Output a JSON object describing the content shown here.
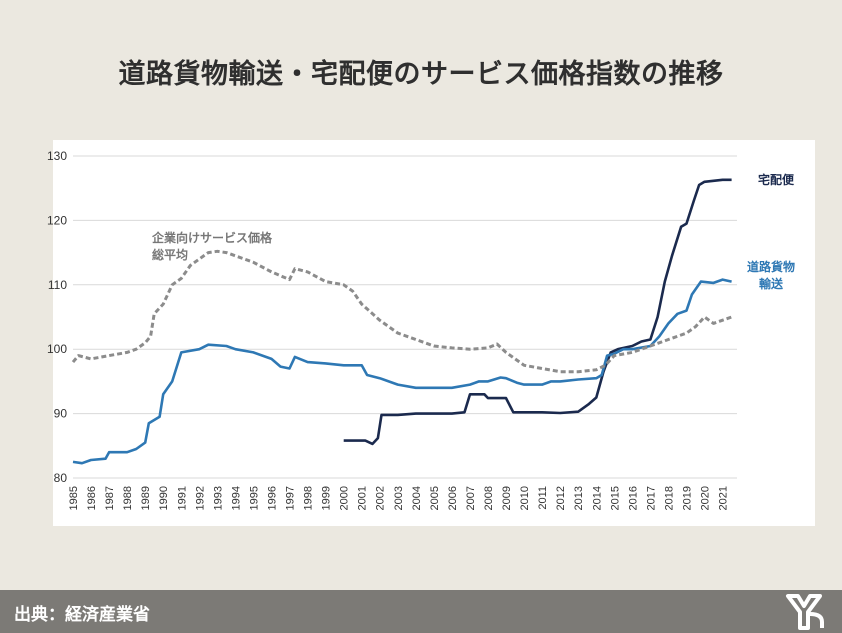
{
  "page": {
    "title": "道路貨物輸送・宅配便のサービス価格指数の推移"
  },
  "footer": {
    "source": "出典：経済産業省"
  },
  "colors": {
    "takuhaibin": "#1b2a4e",
    "doro": "#2e78b4",
    "heikin": "#8c8c8c"
  },
  "chart_data": {
    "type": "line",
    "ylim": [
      80,
      130
    ],
    "yticks": [
      80,
      90,
      100,
      110,
      120,
      130
    ],
    "xlim": [
      1985,
      2021.8
    ],
    "xticks": [
      "1985",
      "1986",
      "1987",
      "1988",
      "1989",
      "1990",
      "1991",
      "1992",
      "1993",
      "1994",
      "1995",
      "1996",
      "1997",
      "1998",
      "1999",
      "2000",
      "2001",
      "2002",
      "2003",
      "2004",
      "2005",
      "2006",
      "2007",
      "2008",
      "2009",
      "2010",
      "2011",
      "2012",
      "2013",
      "2014",
      "2015",
      "2016",
      "2017",
      "2018",
      "2019",
      "2020",
      "2021"
    ],
    "grid": true,
    "series": [
      {
        "name": "宅配便",
        "label_lines": [
          "宅配便"
        ],
        "color": "#1b2a4e",
        "style": "solid",
        "points": [
          [
            2000.0,
            85.8
          ],
          [
            2001.2,
            85.8
          ],
          [
            2001.6,
            85.3
          ],
          [
            2001.9,
            86.2
          ],
          [
            2002.1,
            89.8
          ],
          [
            2003.0,
            89.8
          ],
          [
            2004.0,
            90.0
          ],
          [
            2005.0,
            90.0
          ],
          [
            2006.0,
            90.0
          ],
          [
            2006.7,
            90.2
          ],
          [
            2007.0,
            93.0
          ],
          [
            2007.8,
            93.0
          ],
          [
            2008.0,
            92.4
          ],
          [
            2009.0,
            92.4
          ],
          [
            2009.4,
            90.2
          ],
          [
            2010.0,
            90.2
          ],
          [
            2011.0,
            90.2
          ],
          [
            2012.0,
            90.1
          ],
          [
            2013.0,
            90.3
          ],
          [
            2013.6,
            91.5
          ],
          [
            2014.0,
            92.5
          ],
          [
            2014.4,
            96.5
          ],
          [
            2014.8,
            99.5
          ],
          [
            2015.2,
            100.0
          ],
          [
            2016.0,
            100.5
          ],
          [
            2016.5,
            101.2
          ],
          [
            2017.0,
            101.5
          ],
          [
            2017.4,
            105.0
          ],
          [
            2017.8,
            110.5
          ],
          [
            2018.2,
            114.5
          ],
          [
            2018.7,
            119.0
          ],
          [
            2019.0,
            119.5
          ],
          [
            2019.4,
            123.0
          ],
          [
            2019.7,
            125.5
          ],
          [
            2020.0,
            126.0
          ],
          [
            2021.0,
            126.3
          ],
          [
            2021.5,
            126.3
          ]
        ]
      },
      {
        "name": "道路貨物輸送",
        "label_lines": [
          "道路貨物",
          "輸送"
        ],
        "color": "#2e78b4",
        "style": "solid",
        "points": [
          [
            1985.0,
            82.5
          ],
          [
            1985.5,
            82.3
          ],
          [
            1986.0,
            82.8
          ],
          [
            1986.8,
            83.0
          ],
          [
            1987.0,
            84.0
          ],
          [
            1988.0,
            84.0
          ],
          [
            1988.5,
            84.5
          ],
          [
            1989.0,
            85.5
          ],
          [
            1989.2,
            88.5
          ],
          [
            1989.8,
            89.5
          ],
          [
            1990.0,
            93.0
          ],
          [
            1990.5,
            95.0
          ],
          [
            1991.0,
            99.5
          ],
          [
            1992.0,
            100.0
          ],
          [
            1992.5,
            100.7
          ],
          [
            1993.5,
            100.5
          ],
          [
            1994.0,
            100.0
          ],
          [
            1995.0,
            99.5
          ],
          [
            1996.0,
            98.5
          ],
          [
            1996.5,
            97.3
          ],
          [
            1997.0,
            97.0
          ],
          [
            1997.3,
            98.8
          ],
          [
            1998.0,
            98.0
          ],
          [
            1999.0,
            97.8
          ],
          [
            2000.0,
            97.5
          ],
          [
            2001.0,
            97.5
          ],
          [
            2001.3,
            96.0
          ],
          [
            2002.0,
            95.5
          ],
          [
            2003.0,
            94.5
          ],
          [
            2004.0,
            94.0
          ],
          [
            2005.0,
            94.0
          ],
          [
            2006.0,
            94.0
          ],
          [
            2007.0,
            94.5
          ],
          [
            2007.5,
            95.0
          ],
          [
            2008.0,
            95.0
          ],
          [
            2008.7,
            95.6
          ],
          [
            2009.0,
            95.5
          ],
          [
            2009.6,
            94.8
          ],
          [
            2010.0,
            94.5
          ],
          [
            2011.0,
            94.5
          ],
          [
            2011.5,
            95.0
          ],
          [
            2012.0,
            95.0
          ],
          [
            2013.0,
            95.3
          ],
          [
            2014.0,
            95.5
          ],
          [
            2014.3,
            96.0
          ],
          [
            2014.6,
            99.0
          ],
          [
            2015.0,
            99.3
          ],
          [
            2015.5,
            100.0
          ],
          [
            2016.0,
            100.0
          ],
          [
            2017.0,
            100.5
          ],
          [
            2017.5,
            102.0
          ],
          [
            2018.0,
            104.0
          ],
          [
            2018.5,
            105.5
          ],
          [
            2019.0,
            106.0
          ],
          [
            2019.3,
            108.5
          ],
          [
            2019.8,
            110.5
          ],
          [
            2020.5,
            110.3
          ],
          [
            2021.0,
            110.8
          ],
          [
            2021.5,
            110.5
          ]
        ]
      },
      {
        "name": "企業向けサービス価格総平均",
        "label_lines": [
          "企業向けサービス価格",
          "総平均"
        ],
        "color": "#8c8c8c",
        "style": "dashed",
        "points": [
          [
            1985.0,
            98.0
          ],
          [
            1985.3,
            99.0
          ],
          [
            1986.0,
            98.5
          ],
          [
            1987.0,
            99.0
          ],
          [
            1988.0,
            99.5
          ],
          [
            1988.5,
            100.0
          ],
          [
            1989.0,
            101.0
          ],
          [
            1989.3,
            102.0
          ],
          [
            1989.5,
            105.5
          ],
          [
            1990.0,
            107.0
          ],
          [
            1990.5,
            110.0
          ],
          [
            1991.0,
            111.0
          ],
          [
            1991.5,
            113.0
          ],
          [
            1992.0,
            114.0
          ],
          [
            1992.5,
            115.0
          ],
          [
            1993.0,
            115.2
          ],
          [
            1993.5,
            115.0
          ],
          [
            1994.0,
            114.5
          ],
          [
            1995.0,
            113.5
          ],
          [
            1996.0,
            112.0
          ],
          [
            1997.0,
            110.8
          ],
          [
            1997.3,
            112.5
          ],
          [
            1998.0,
            112.0
          ],
          [
            1999.0,
            110.5
          ],
          [
            2000.0,
            110.0
          ],
          [
            2000.5,
            109.0
          ],
          [
            2001.0,
            107.0
          ],
          [
            2002.0,
            104.5
          ],
          [
            2003.0,
            102.5
          ],
          [
            2004.0,
            101.5
          ],
          [
            2005.0,
            100.5
          ],
          [
            2006.0,
            100.2
          ],
          [
            2007.0,
            100.0
          ],
          [
            2008.0,
            100.2
          ],
          [
            2008.5,
            100.8
          ],
          [
            2009.0,
            99.5
          ],
          [
            2010.0,
            97.5
          ],
          [
            2011.0,
            97.0
          ],
          [
            2012.0,
            96.5
          ],
          [
            2013.0,
            96.5
          ],
          [
            2014.0,
            96.8
          ],
          [
            2014.5,
            97.5
          ],
          [
            2015.0,
            99.0
          ],
          [
            2016.0,
            99.5
          ],
          [
            2017.0,
            100.5
          ],
          [
            2018.0,
            101.5
          ],
          [
            2019.0,
            102.5
          ],
          [
            2019.5,
            103.5
          ],
          [
            2020.0,
            105.0
          ],
          [
            2020.5,
            104.0
          ],
          [
            2021.0,
            104.5
          ],
          [
            2021.5,
            105.0
          ]
        ]
      }
    ]
  }
}
